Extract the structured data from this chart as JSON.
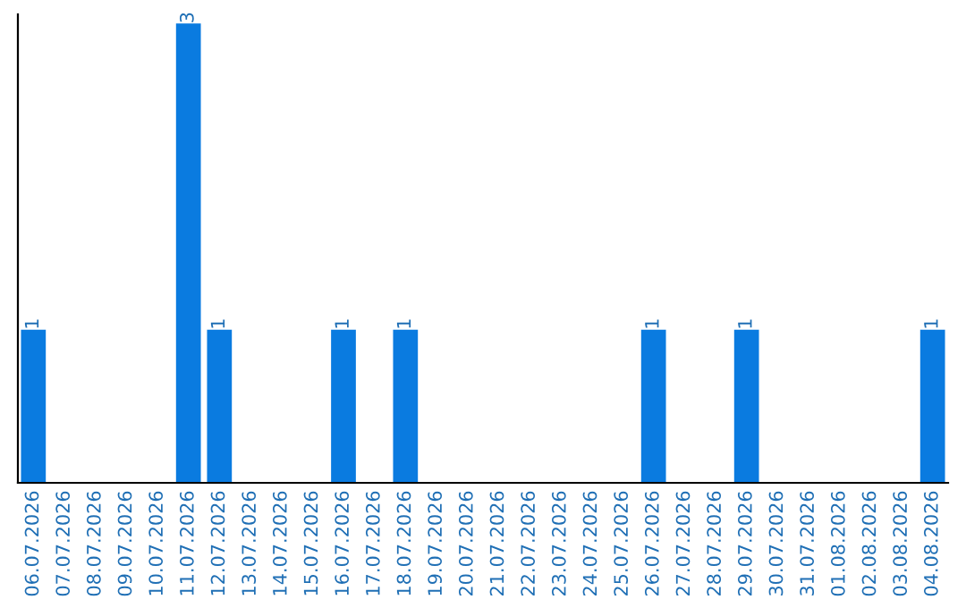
{
  "chart_data": {
    "type": "bar",
    "categories": [
      "06.07.2026",
      "07.07.2026",
      "08.07.2026",
      "09.07.2026",
      "10.07.2026",
      "11.07.2026",
      "12.07.2026",
      "13.07.2026",
      "14.07.2026",
      "15.07.2026",
      "16.07.2026",
      "17.07.2026",
      "18.07.2026",
      "19.07.2026",
      "20.07.2026",
      "21.07.2026",
      "22.07.2026",
      "23.07.2026",
      "24.07.2026",
      "25.07.2026",
      "26.07.2026",
      "27.07.2026",
      "28.07.2026",
      "29.07.2026",
      "30.07.2026",
      "31.07.2026",
      "01.08.2026",
      "02.08.2026",
      "03.08.2026",
      "04.08.2026"
    ],
    "values": [
      1,
      0,
      0,
      0,
      0,
      3,
      1,
      0,
      0,
      0,
      1,
      0,
      1,
      0,
      0,
      0,
      0,
      0,
      0,
      0,
      1,
      0,
      0,
      1,
      0,
      0,
      0,
      0,
      0,
      1
    ],
    "value_labels": [
      "1",
      null,
      null,
      null,
      null,
      "3",
      "1",
      null,
      null,
      null,
      "1",
      null,
      "1",
      null,
      null,
      null,
      null,
      null,
      null,
      null,
      "1",
      null,
      null,
      "1",
      null,
      null,
      null,
      null,
      null,
      "1"
    ],
    "color": "#0a7be0",
    "tick_labels": "x",
    "grid": false,
    "legend": false
  }
}
